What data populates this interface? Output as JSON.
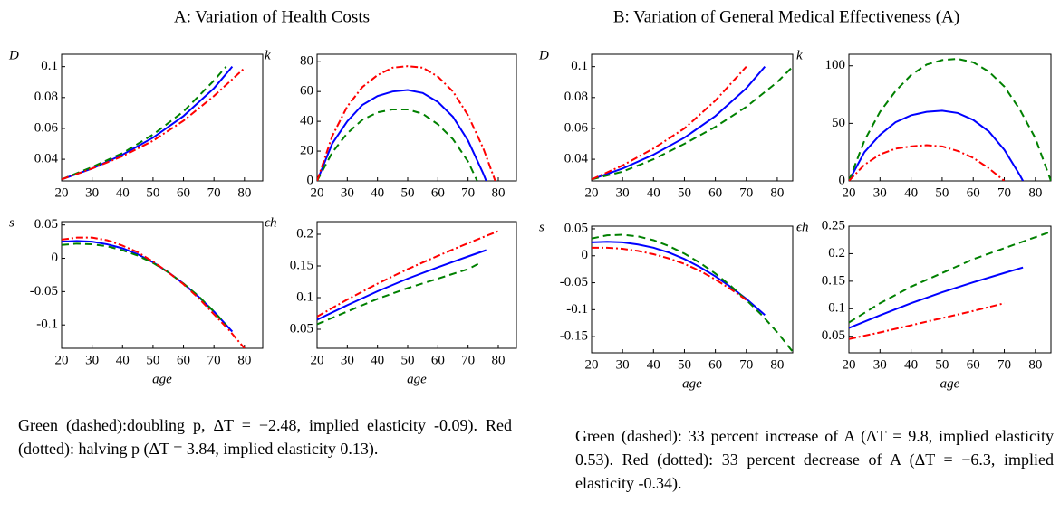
{
  "panels": [
    {
      "title": "A: Variation of Health Costs",
      "caption": "Green (dashed):doubling p, ΔT = −2.48, implied elasticity -0.09). Red (dotted): halving p (ΔT = 3.84, implied elasticity 0.13)."
    },
    {
      "title": "B: Variation of General Medical Effectiveness (A)",
      "caption": "Green (dashed): 33 percent increase of A (ΔT = 9.8, implied elasticity 0.53). Red (dotted): 33 percent decrease of A (ΔT = −6.3, implied elasticity -0.34)."
    }
  ],
  "chart_data": [
    {
      "type": "line",
      "ylabel": "D",
      "xlim": [
        20,
        86
      ],
      "xticks": [
        20,
        30,
        40,
        50,
        60,
        70,
        80
      ],
      "ylim": [
        0.026,
        0.108
      ],
      "yticks": [
        0.04,
        0.06,
        0.08,
        0.1
      ],
      "series": [
        {
          "color": "#0000ff",
          "dash": "solid",
          "x": [
            20,
            30,
            40,
            50,
            60,
            70,
            76
          ],
          "values": [
            0.027,
            0.034,
            0.043,
            0.054,
            0.068,
            0.086,
            0.1
          ]
        },
        {
          "color": "#008000",
          "dash": "dashed",
          "x": [
            20,
            30,
            40,
            50,
            60,
            70,
            74
          ],
          "values": [
            0.027,
            0.035,
            0.044,
            0.056,
            0.071,
            0.091,
            0.1
          ]
        },
        {
          "color": "#ff0000",
          "dash": "dashdot",
          "x": [
            20,
            30,
            40,
            50,
            60,
            70,
            80
          ],
          "values": [
            0.027,
            0.034,
            0.042,
            0.052,
            0.065,
            0.081,
            0.099
          ]
        }
      ]
    },
    {
      "type": "line",
      "ylabel": "k",
      "xlim": [
        20,
        86
      ],
      "xticks": [
        20,
        30,
        40,
        50,
        60,
        70,
        80
      ],
      "ylim": [
        0,
        85
      ],
      "yticks": [
        0,
        20,
        40,
        60,
        80
      ],
      "series": [
        {
          "color": "#0000ff",
          "dash": "solid",
          "x": [
            20,
            25,
            30,
            35,
            40,
            45,
            50,
            55,
            60,
            65,
            70,
            75,
            76
          ],
          "values": [
            0,
            25,
            40,
            51,
            57,
            60,
            61,
            59,
            53,
            43,
            27,
            5,
            0
          ]
        },
        {
          "color": "#008000",
          "dash": "dashed",
          "x": [
            20,
            25,
            30,
            35,
            40,
            45,
            50,
            55,
            60,
            65,
            70,
            73
          ],
          "values": [
            0,
            19,
            32,
            41,
            46,
            48,
            48,
            45,
            38,
            28,
            13,
            0
          ]
        },
        {
          "color": "#ff0000",
          "dash": "dashdot",
          "x": [
            20,
            25,
            30,
            35,
            40,
            45,
            50,
            55,
            60,
            65,
            70,
            75,
            79
          ],
          "values": [
            0,
            30,
            50,
            63,
            71,
            76,
            77,
            76,
            70,
            60,
            44,
            22,
            0
          ]
        }
      ]
    },
    {
      "type": "line",
      "ylabel": "s",
      "xlabel": "age",
      "xlim": [
        20,
        86
      ],
      "xticks": [
        20,
        30,
        40,
        50,
        60,
        70,
        80
      ],
      "ylim": [
        -0.135,
        0.055
      ],
      "yticks": [
        0.05,
        0,
        -0.05,
        -0.1
      ],
      "series": [
        {
          "color": "#0000ff",
          "dash": "solid",
          "x": [
            20,
            25,
            30,
            35,
            40,
            45,
            50,
            55,
            60,
            65,
            70,
            76
          ],
          "values": [
            0.025,
            0.026,
            0.025,
            0.021,
            0.015,
            0.006,
            -0.006,
            -0.021,
            -0.038,
            -0.058,
            -0.08,
            -0.11
          ]
        },
        {
          "color": "#008000",
          "dash": "dashed",
          "x": [
            20,
            25,
            30,
            35,
            40,
            45,
            50,
            55,
            60,
            65,
            70,
            74
          ],
          "values": [
            0.02,
            0.022,
            0.021,
            0.018,
            0.012,
            0.004,
            -0.007,
            -0.021,
            -0.038,
            -0.057,
            -0.08,
            -0.1
          ]
        },
        {
          "color": "#ff0000",
          "dash": "dashdot",
          "x": [
            20,
            25,
            30,
            35,
            40,
            45,
            50,
            55,
            60,
            65,
            70,
            75,
            80
          ],
          "values": [
            0.028,
            0.031,
            0.031,
            0.027,
            0.019,
            0.009,
            -0.005,
            -0.021,
            -0.039,
            -0.06,
            -0.084,
            -0.108,
            -0.135
          ]
        }
      ]
    },
    {
      "type": "line",
      "ylabel": "ϵh",
      "xlabel": "age",
      "xlim": [
        20,
        86
      ],
      "xticks": [
        20,
        30,
        40,
        50,
        60,
        70,
        80
      ],
      "ylim": [
        0.02,
        0.22
      ],
      "yticks": [
        0.05,
        0.1,
        0.15,
        0.2
      ],
      "series": [
        {
          "color": "#0000ff",
          "dash": "solid",
          "x": [
            20,
            30,
            40,
            50,
            60,
            70,
            76
          ],
          "values": [
            0.065,
            0.088,
            0.11,
            0.13,
            0.148,
            0.165,
            0.175
          ]
        },
        {
          "color": "#008000",
          "dash": "dashed",
          "x": [
            20,
            30,
            40,
            50,
            60,
            70,
            74
          ],
          "values": [
            0.058,
            0.078,
            0.098,
            0.115,
            0.13,
            0.145,
            0.155
          ]
        },
        {
          "color": "#ff0000",
          "dash": "dashdot",
          "x": [
            20,
            30,
            40,
            50,
            60,
            70,
            80
          ],
          "values": [
            0.07,
            0.097,
            0.122,
            0.145,
            0.166,
            0.186,
            0.205
          ]
        }
      ]
    },
    {
      "type": "line",
      "ylabel": "D",
      "xlim": [
        20,
        85
      ],
      "xticks": [
        20,
        30,
        40,
        50,
        60,
        70,
        80
      ],
      "ylim": [
        0.026,
        0.108
      ],
      "yticks": [
        0.04,
        0.06,
        0.08,
        0.1
      ],
      "series": [
        {
          "color": "#0000ff",
          "dash": "solid",
          "x": [
            20,
            30,
            40,
            50,
            60,
            70,
            76
          ],
          "values": [
            0.027,
            0.034,
            0.043,
            0.054,
            0.068,
            0.086,
            0.1
          ]
        },
        {
          "color": "#008000",
          "dash": "dashed",
          "x": [
            20,
            30,
            40,
            50,
            60,
            70,
            80,
            85
          ],
          "values": [
            0.027,
            0.032,
            0.04,
            0.05,
            0.061,
            0.074,
            0.09,
            0.1
          ]
        },
        {
          "color": "#ff0000",
          "dash": "dashdot",
          "x": [
            20,
            30,
            40,
            50,
            60,
            70
          ],
          "values": [
            0.027,
            0.036,
            0.047,
            0.06,
            0.078,
            0.1
          ]
        }
      ]
    },
    {
      "type": "line",
      "ylabel": "k",
      "xlim": [
        20,
        85
      ],
      "xticks": [
        20,
        30,
        40,
        50,
        60,
        70,
        80
      ],
      "ylim": [
        0,
        110
      ],
      "yticks": [
        0,
        50,
        100
      ],
      "series": [
        {
          "color": "#0000ff",
          "dash": "solid",
          "x": [
            20,
            25,
            30,
            35,
            40,
            45,
            50,
            55,
            60,
            65,
            70,
            75,
            76
          ],
          "values": [
            0,
            25,
            40,
            51,
            57,
            60,
            61,
            59,
            53,
            43,
            27,
            5,
            0
          ]
        },
        {
          "color": "#008000",
          "dash": "dashed",
          "x": [
            20,
            25,
            30,
            35,
            40,
            45,
            50,
            55,
            60,
            65,
            70,
            75,
            80,
            85
          ],
          "values": [
            0,
            35,
            60,
            78,
            92,
            101,
            105,
            106,
            103,
            95,
            82,
            62,
            37,
            0
          ]
        },
        {
          "color": "#ff0000",
          "dash": "dashdot",
          "x": [
            20,
            25,
            30,
            35,
            40,
            45,
            50,
            55,
            60,
            65,
            70
          ],
          "values": [
            0,
            14,
            23,
            28,
            30,
            31,
            30,
            26,
            20,
            11,
            0
          ]
        }
      ]
    },
    {
      "type": "line",
      "ylabel": "s",
      "xlabel": "age",
      "xlim": [
        20,
        85
      ],
      "xticks": [
        20,
        30,
        40,
        50,
        60,
        70,
        80
      ],
      "ylim": [
        -0.18,
        0.055
      ],
      "yticks": [
        0.05,
        0,
        -0.05,
        -0.1,
        -0.15
      ],
      "series": [
        {
          "color": "#0000ff",
          "dash": "solid",
          "x": [
            20,
            25,
            30,
            35,
            40,
            45,
            50,
            55,
            60,
            65,
            70,
            76
          ],
          "values": [
            0.025,
            0.026,
            0.025,
            0.021,
            0.015,
            0.006,
            -0.006,
            -0.021,
            -0.038,
            -0.058,
            -0.08,
            -0.11
          ]
        },
        {
          "color": "#008000",
          "dash": "dashed",
          "x": [
            20,
            25,
            30,
            35,
            40,
            45,
            50,
            55,
            60,
            65,
            70,
            75,
            80,
            85
          ],
          "values": [
            0.032,
            0.038,
            0.039,
            0.036,
            0.029,
            0.018,
            0.004,
            -0.013,
            -0.033,
            -0.056,
            -0.082,
            -0.11,
            -0.142,
            -0.178
          ]
        },
        {
          "color": "#ff0000",
          "dash": "dashdot",
          "x": [
            20,
            25,
            30,
            35,
            40,
            45,
            50,
            55,
            60,
            65,
            70
          ],
          "values": [
            0.015,
            0.015,
            0.013,
            0.009,
            0.003,
            -0.005,
            -0.015,
            -0.028,
            -0.044,
            -0.062,
            -0.082
          ]
        }
      ]
    },
    {
      "type": "line",
      "ylabel": "ϵh",
      "xlabel": "age",
      "xlim": [
        20,
        85
      ],
      "xticks": [
        20,
        30,
        40,
        50,
        60,
        70,
        80
      ],
      "ylim": [
        0.02,
        0.25
      ],
      "yticks": [
        0.05,
        0.1,
        0.15,
        0.2,
        0.25
      ],
      "series": [
        {
          "color": "#0000ff",
          "dash": "solid",
          "x": [
            20,
            30,
            40,
            50,
            60,
            70,
            76
          ],
          "values": [
            0.065,
            0.088,
            0.11,
            0.13,
            0.148,
            0.165,
            0.175
          ]
        },
        {
          "color": "#008000",
          "dash": "dashed",
          "x": [
            20,
            30,
            40,
            50,
            60,
            70,
            80,
            85
          ],
          "values": [
            0.075,
            0.11,
            0.14,
            0.165,
            0.19,
            0.21,
            0.23,
            0.24
          ]
        },
        {
          "color": "#ff0000",
          "dash": "dashdot",
          "x": [
            20,
            30,
            40,
            50,
            60,
            70
          ],
          "values": [
            0.045,
            0.057,
            0.07,
            0.083,
            0.096,
            0.11
          ]
        }
      ]
    }
  ]
}
